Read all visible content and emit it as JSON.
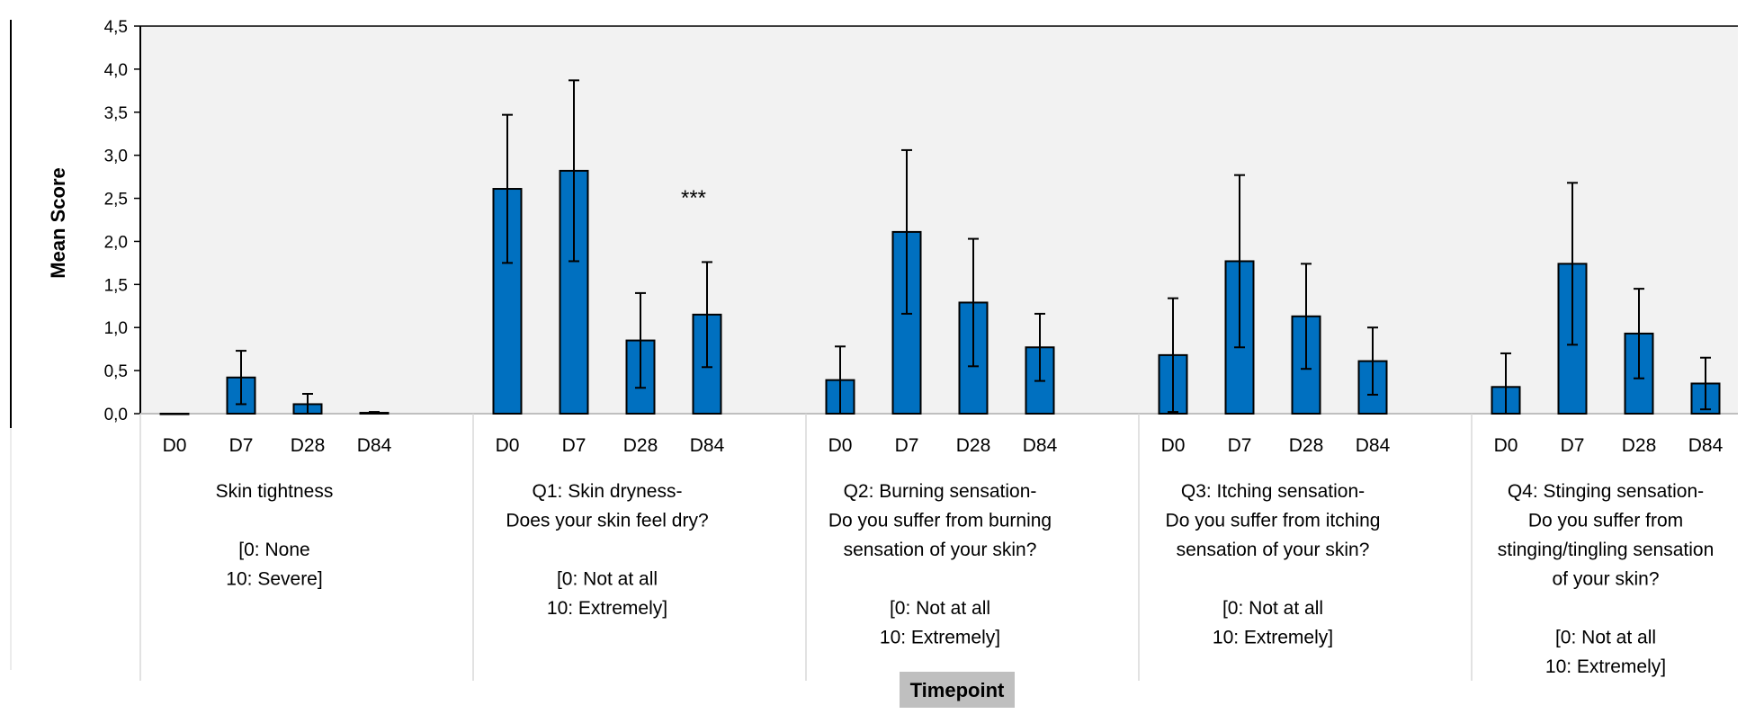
{
  "chart_data": {
    "type": "bar",
    "ylabel": "Mean Score",
    "xlabel": "Timepoint",
    "ylim": [
      0,
      4.5
    ],
    "yticks": [
      "0,0",
      "0,5",
      "1,0",
      "1,5",
      "2,0",
      "2,5",
      "3,0",
      "3,5",
      "4,0",
      "4,5"
    ],
    "grid": false,
    "colors": {
      "bar": "#0070C0",
      "plot_bg": "#F2F2F2",
      "xlabel_bg": "#BFBFBF"
    },
    "groups": [
      {
        "label_lines": [
          "Skin tightness",
          "",
          "[0: None",
          "10: Severe]"
        ],
        "categories": [
          "D0",
          "D7",
          "D28",
          "D84"
        ],
        "values": [
          0.0,
          0.42,
          0.11,
          0.01
        ],
        "errors": [
          0.0,
          0.31,
          0.12,
          0.01
        ],
        "annotation": ""
      },
      {
        "label_lines": [
          "Q1: Skin dryness-",
          "Does your skin feel dry?",
          "",
          "[0: Not at all",
          "10: Extremely]"
        ],
        "categories": [
          "D0",
          "D7",
          "D28",
          "D84"
        ],
        "values": [
          2.61,
          2.82,
          0.85,
          1.15
        ],
        "errors": [
          0.86,
          1.05,
          0.55,
          0.61
        ],
        "annotation": "***"
      },
      {
        "label_lines": [
          "Q2: Burning sensation-",
          "Do you suffer from burning",
          "sensation of your skin?",
          "",
          "[0: Not at all",
          "10: Extremely]"
        ],
        "categories": [
          "D0",
          "D7",
          "D28",
          "D84"
        ],
        "values": [
          0.39,
          2.11,
          1.29,
          0.77
        ],
        "errors": [
          0.39,
          0.95,
          0.74,
          0.39
        ],
        "annotation": ""
      },
      {
        "label_lines": [
          "Q3: Itching sensation-",
          "Do you suffer from itching",
          "sensation of your skin?",
          "",
          "[0: Not at all",
          "10: Extremely]"
        ],
        "categories": [
          "D0",
          "D7",
          "D28",
          "D84"
        ],
        "values": [
          0.68,
          1.77,
          1.13,
          0.61
        ],
        "errors": [
          0.66,
          1.0,
          0.61,
          0.39
        ],
        "annotation": ""
      },
      {
        "label_lines": [
          "Q4: Stinging sensation-",
          "Do you suffer from",
          "stinging/tingling sensation",
          "of your skin?",
          "",
          "[0: Not at all",
          "10: Extremely]"
        ],
        "categories": [
          "D0",
          "D7",
          "D28",
          "D84"
        ],
        "values": [
          0.31,
          1.74,
          0.93,
          0.35
        ],
        "errors": [
          0.39,
          0.94,
          0.52,
          0.3
        ],
        "annotation": ""
      }
    ]
  }
}
